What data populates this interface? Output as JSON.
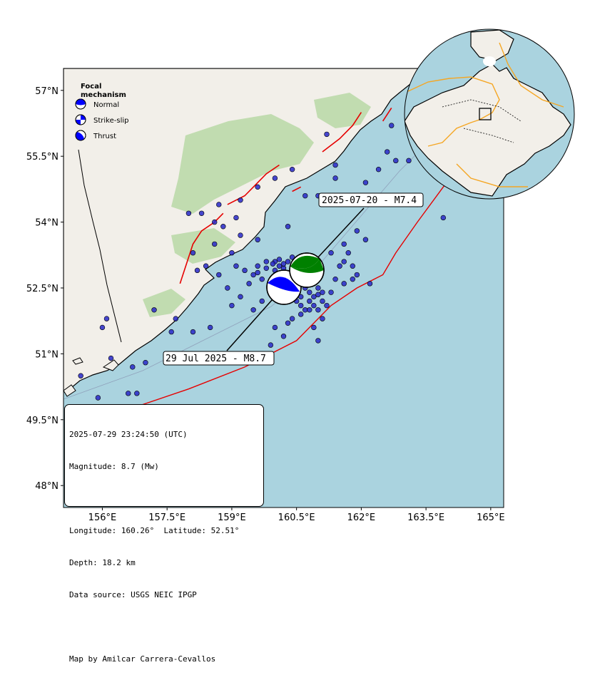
{
  "map": {
    "axes": {
      "x_ticks": [
        "156°E",
        "157.5°E",
        "159°E",
        "160.5°E",
        "162°E",
        "163.5°E",
        "165°E"
      ],
      "y_ticks": [
        "57°N",
        "55.5°N",
        "54°N",
        "52.5°N",
        "51°N",
        "49.5°N",
        "48°N"
      ],
      "lon_range": [
        155.1,
        165.3
      ],
      "lat_range": [
        47.5,
        57.5
      ]
    },
    "colors": {
      "ocean": "#aad3df",
      "land": "#f2efe9",
      "vegetation": "#b8d8a6",
      "fault": "#e60000",
      "trench": "#e60000",
      "event_marker": "#2828c8",
      "mechanism_mainshock": "#0000ff",
      "mechanism_foreshock": "#008000",
      "plate_boundary": "#f5a623"
    },
    "legend": {
      "title_line1": "Focal",
      "title_line2": "mechanism",
      "items": [
        {
          "label": "Normal",
          "icon": "normal-fault-beachball-icon"
        },
        {
          "label": "Strike-slip",
          "icon": "strike-slip-beachball-icon"
        },
        {
          "label": "Thrust",
          "icon": "thrust-beachball-icon"
        }
      ]
    },
    "callouts": {
      "foreshock": {
        "label": "2025-07-20 - M7.4",
        "lon": 161.3,
        "lat": 52.9
      },
      "mainshock": {
        "label": "29 Jul 2025 - M8.7",
        "lon": 160.26,
        "lat": 52.51
      }
    },
    "info_box": {
      "datetime": "2025-07-29 23:24:50 (UTC)",
      "magnitude": "Magnitude: 8.7 (Mw)",
      "coords": "Longitude: 160.26°  Latitude: 52.51°",
      "depth": "Depth: 18.2 km",
      "source": "Data source: USGS NEIC IPGP",
      "credit": "Map by Amilcar Carrera-Cevallos"
    },
    "events": [
      [
        160.0,
        52.9
      ],
      [
        160.1,
        53.0
      ],
      [
        160.2,
        52.95
      ],
      [
        160.3,
        52.8
      ],
      [
        160.4,
        52.85
      ],
      [
        160.5,
        52.7
      ],
      [
        160.6,
        52.6
      ],
      [
        160.7,
        52.5
      ],
      [
        160.8,
        52.4
      ],
      [
        160.9,
        52.3
      ],
      [
        161.0,
        52.35
      ],
      [
        161.1,
        52.2
      ],
      [
        160.9,
        52.1
      ],
      [
        160.8,
        52.2
      ],
      [
        160.6,
        52.3
      ],
      [
        160.5,
        52.2
      ],
      [
        160.7,
        52.0
      ],
      [
        161.0,
        52.0
      ],
      [
        161.2,
        52.1
      ],
      [
        160.6,
        51.9
      ],
      [
        160.4,
        51.8
      ],
      [
        160.3,
        51.7
      ],
      [
        159.9,
        52.6
      ],
      [
        159.7,
        52.7
      ],
      [
        159.5,
        52.8
      ],
      [
        159.3,
        52.9
      ],
      [
        159.1,
        53.0
      ],
      [
        159.6,
        53.0
      ],
      [
        159.8,
        53.1
      ],
      [
        160.0,
        53.1
      ],
      [
        160.2,
        53.05
      ],
      [
        160.1,
        52.7
      ],
      [
        159.9,
        52.4
      ],
      [
        159.7,
        52.2
      ],
      [
        159.0,
        52.1
      ],
      [
        158.9,
        52.5
      ],
      [
        158.7,
        52.8
      ],
      [
        158.4,
        53.0
      ],
      [
        159.0,
        53.3
      ],
      [
        158.6,
        53.5
      ],
      [
        158.8,
        53.9
      ],
      [
        159.1,
        54.1
      ],
      [
        158.0,
        54.2
      ],
      [
        158.3,
        54.2
      ],
      [
        158.7,
        54.4
      ],
      [
        159.6,
        54.8
      ],
      [
        160.0,
        55.0
      ],
      [
        160.4,
        55.2
      ],
      [
        160.7,
        54.6
      ],
      [
        161.0,
        54.6
      ],
      [
        161.4,
        55.3
      ],
      [
        161.8,
        54.6
      ],
      [
        162.1,
        54.9
      ],
      [
        162.4,
        55.2
      ],
      [
        162.8,
        55.4
      ],
      [
        163.4,
        55.4
      ],
      [
        163.6,
        55.3
      ],
      [
        163.1,
        55.4
      ],
      [
        162.6,
        55.6
      ],
      [
        163.3,
        54.4
      ],
      [
        163.9,
        54.1
      ],
      [
        161.7,
        53.3
      ],
      [
        162.1,
        53.6
      ],
      [
        161.9,
        53.8
      ],
      [
        161.5,
        53.0
      ],
      [
        161.6,
        52.6
      ],
      [
        161.8,
        52.7
      ],
      [
        161.9,
        52.8
      ],
      [
        161.4,
        52.7
      ],
      [
        161.3,
        52.4
      ],
      [
        161.1,
        51.8
      ],
      [
        160.9,
        51.6
      ],
      [
        161.0,
        51.3
      ],
      [
        159.9,
        51.2
      ],
      [
        159.4,
        50.9
      ],
      [
        158.5,
        51.6
      ],
      [
        157.7,
        51.8
      ],
      [
        157.2,
        52.0
      ],
      [
        157.6,
        51.5
      ],
      [
        158.1,
        51.5
      ],
      [
        157.0,
        50.8
      ],
      [
        156.7,
        50.7
      ],
      [
        156.2,
        50.9
      ],
      [
        156.0,
        51.6
      ],
      [
        156.1,
        51.8
      ],
      [
        155.5,
        50.5
      ],
      [
        155.9,
        50.0
      ],
      [
        156.6,
        50.1
      ],
      [
        156.8,
        50.1
      ],
      [
        157.8,
        49.7
      ],
      [
        159.3,
        49.7
      ],
      [
        158.1,
        53.3
      ],
      [
        159.6,
        53.6
      ],
      [
        161.6,
        53.5
      ],
      [
        161.4,
        55.0
      ],
      [
        162.7,
        56.2
      ],
      [
        163.2,
        56.2
      ],
      [
        161.2,
        56.0
      ],
      [
        160.4,
        53.2
      ],
      [
        160.3,
        53.9
      ],
      [
        159.2,
        53.7
      ],
      [
        158.6,
        54.0
      ],
      [
        159.2,
        54.5
      ],
      [
        158.2,
        52.9
      ],
      [
        160.5,
        52.4
      ],
      [
        160.6,
        52.1
      ],
      [
        160.8,
        52.0
      ],
      [
        161.0,
        52.5
      ],
      [
        161.1,
        52.4
      ],
      [
        160.9,
        52.6
      ],
      [
        160.7,
        52.7
      ],
      [
        160.5,
        52.95
      ],
      [
        160.3,
        53.1
      ],
      [
        160.1,
        53.15
      ],
      [
        159.95,
        53.05
      ],
      [
        159.8,
        52.95
      ],
      [
        159.6,
        52.85
      ],
      [
        159.4,
        52.6
      ],
      [
        159.2,
        52.3
      ],
      [
        159.5,
        52.0
      ],
      [
        160.0,
        51.6
      ],
      [
        160.2,
        51.4
      ],
      [
        161.6,
        53.1
      ],
      [
        161.8,
        53.0
      ],
      [
        162.2,
        52.6
      ],
      [
        161.3,
        53.3
      ]
    ],
    "fault_traces": [
      [
        [
          157.8,
          52.6
        ],
        [
          157.9,
          52.9
        ],
        [
          158.0,
          53.2
        ],
        [
          158.1,
          53.5
        ],
        [
          158.3,
          53.8
        ],
        [
          158.6,
          54.0
        ],
        [
          158.8,
          54.2
        ]
      ],
      [
        [
          158.9,
          54.4
        ],
        [
          159.3,
          54.6
        ],
        [
          159.6,
          54.9
        ],
        [
          159.8,
          55.1
        ],
        [
          160.1,
          55.3
        ]
      ],
      [
        [
          161.1,
          55.6
        ],
        [
          161.5,
          55.9
        ],
        [
          161.8,
          56.2
        ],
        [
          162.0,
          56.5
        ]
      ],
      [
        [
          162.5,
          56.3
        ],
        [
          162.7,
          56.6
        ]
      ],
      [
        [
          160.4,
          54.7
        ],
        [
          160.6,
          54.8
        ]
      ]
    ],
    "trench": [
      [
        155.3,
        49.3
      ],
      [
        156.5,
        49.7
      ],
      [
        158.0,
        50.2
      ],
      [
        159.3,
        50.7
      ],
      [
        160.5,
        51.3
      ],
      [
        161.3,
        52.1
      ],
      [
        161.9,
        52.5
      ],
      [
        162.5,
        52.8
      ],
      [
        162.8,
        53.3
      ],
      [
        163.3,
        54.0
      ],
      [
        163.9,
        54.8
      ],
      [
        164.5,
        55.5
      ]
    ]
  }
}
